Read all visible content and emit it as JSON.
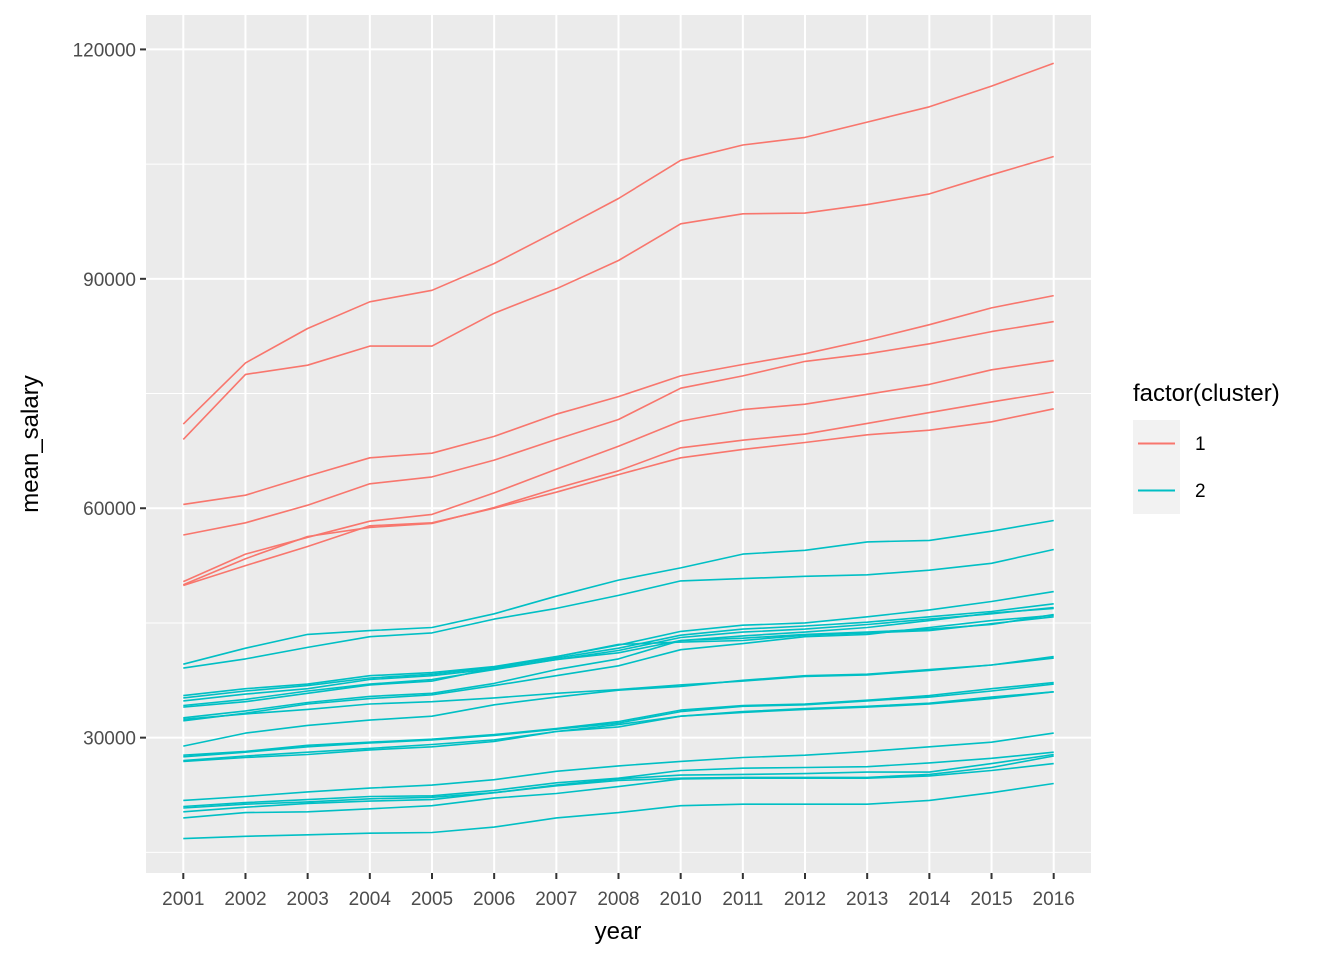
{
  "chart_data": {
    "type": "line",
    "xlabel": "year",
    "ylabel": "mean_salary",
    "categories": [
      "2001",
      "2002",
      "2003",
      "2004",
      "2005",
      "2006",
      "2007",
      "2008",
      "2010",
      "2011",
      "2012",
      "2013",
      "2014",
      "2015",
      "2016"
    ],
    "y_ticks": [
      30000,
      60000,
      90000,
      120000
    ],
    "y_tick_labels": [
      "30000",
      "60000",
      "90000",
      "120000"
    ],
    "ylim": [
      12300,
      124500
    ],
    "grid": true,
    "legend": {
      "title": "factor(cluster)",
      "placement": "right",
      "entries": [
        {
          "label": "1",
          "color": "#F8766D"
        },
        {
          "label": "2",
          "color": "#00BFC4"
        }
      ]
    },
    "series": [
      {
        "group": "1",
        "values": [
          71000,
          79000,
          83500,
          87000,
          88500,
          92000,
          96200,
          100500,
          105500,
          107500,
          108500,
          110500,
          112500,
          115200,
          118200
        ]
      },
      {
        "group": "1",
        "values": [
          69000,
          77500,
          78700,
          81200,
          81200,
          85500,
          88700,
          92400,
          97200,
          98500,
          98600,
          99700,
          101100,
          103600,
          106000
        ]
      },
      {
        "group": "1",
        "values": [
          60500,
          61700,
          64200,
          66600,
          67200,
          69400,
          72300,
          74600,
          77300,
          78800,
          80200,
          82000,
          84000,
          86200,
          87800
        ]
      },
      {
        "group": "1",
        "values": [
          56500,
          58100,
          60400,
          63200,
          64100,
          66300,
          69000,
          71600,
          75700,
          77300,
          79200,
          80200,
          81500,
          83100,
          84400
        ]
      },
      {
        "group": "1",
        "values": [
          50400,
          54000,
          56200,
          58300,
          59200,
          62000,
          65100,
          68100,
          71400,
          72900,
          73600,
          74900,
          76200,
          78100,
          79300
        ]
      },
      {
        "group": "1",
        "values": [
          50000,
          53400,
          56300,
          57500,
          58000,
          60100,
          62600,
          64900,
          67900,
          68900,
          69700,
          71100,
          72500,
          73900,
          75200
        ]
      },
      {
        "group": "1",
        "values": [
          49900,
          52500,
          55000,
          57700,
          58100,
          60000,
          62100,
          64400,
          66600,
          67700,
          68600,
          69600,
          70200,
          71300,
          73000
        ]
      },
      {
        "group": "2",
        "values": [
          39600,
          41700,
          43500,
          44000,
          44400,
          46200,
          48500,
          50600,
          52200,
          54000,
          54500,
          55600,
          55800,
          57000,
          58400
        ]
      },
      {
        "group": "2",
        "values": [
          39100,
          40300,
          41800,
          43200,
          43700,
          45500,
          46900,
          48600,
          50500,
          50800,
          51100,
          51300,
          51900,
          52800,
          54600
        ]
      },
      {
        "group": "2",
        "values": [
          35500,
          36400,
          37000,
          38100,
          38500,
          39300,
          40600,
          42100,
          43900,
          44700,
          45000,
          45800,
          46700,
          47800,
          49100
        ]
      },
      {
        "group": "2",
        "values": [
          35200,
          36100,
          36800,
          37800,
          38300,
          39200,
          40400,
          41700,
          43400,
          44200,
          44600,
          45100,
          45800,
          46500,
          47500
        ]
      },
      {
        "group": "2",
        "values": [
          34800,
          35700,
          36400,
          37600,
          38100,
          39000,
          40200,
          41400,
          43100,
          43800,
          44200,
          44800,
          45500,
          46200,
          47000
        ]
      },
      {
        "group": "2",
        "values": [
          34200,
          35000,
          36100,
          37000,
          37600,
          38900,
          40200,
          41100,
          42700,
          43300,
          43800,
          44400,
          45300,
          46300,
          46900
        ]
      },
      {
        "group": "2",
        "values": [
          34000,
          34700,
          35800,
          36900,
          37400,
          39100,
          40600,
          42200,
          42500,
          42700,
          43400,
          43700,
          44000,
          44900,
          45800
        ]
      },
      {
        "group": "2",
        "values": [
          32600,
          33500,
          34600,
          35400,
          35800,
          37100,
          38900,
          40300,
          42700,
          43000,
          43500,
          43800,
          44200,
          44800,
          46100
        ]
      },
      {
        "group": "2",
        "values": [
          32200,
          33200,
          34400,
          35100,
          35600,
          36800,
          38100,
          39400,
          41500,
          42300,
          43200,
          43500,
          44400,
          45300,
          46000
        ]
      },
      {
        "group": "2",
        "values": [
          32400,
          33100,
          33700,
          34400,
          34700,
          35200,
          35800,
          36300,
          36900,
          37400,
          38000,
          38200,
          38800,
          39500,
          40600
        ]
      },
      {
        "group": "2",
        "values": [
          28900,
          30600,
          31600,
          32300,
          32800,
          34300,
          35300,
          36200,
          36700,
          37500,
          38100,
          38300,
          38900,
          39500,
          40400
        ]
      },
      {
        "group": "2",
        "values": [
          27700,
          28200,
          29000,
          29400,
          29800,
          30400,
          31200,
          32100,
          33600,
          34200,
          34400,
          34900,
          35500,
          36400,
          37200
        ]
      },
      {
        "group": "2",
        "values": [
          27500,
          28100,
          28800,
          29300,
          29700,
          30300,
          31100,
          31900,
          33400,
          34100,
          34300,
          34800,
          35300,
          36100,
          37000
        ]
      },
      {
        "group": "2",
        "values": [
          27000,
          27600,
          28100,
          28600,
          29100,
          29700,
          30800,
          31700,
          32800,
          33400,
          33800,
          34100,
          34500,
          35300,
          36000
        ]
      },
      {
        "group": "2",
        "values": [
          26900,
          27400,
          27800,
          28400,
          28800,
          29500,
          30800,
          31400,
          32800,
          33300,
          33700,
          34000,
          34400,
          35100,
          36000
        ]
      },
      {
        "group": "2",
        "values": [
          21800,
          22300,
          22900,
          23400,
          23800,
          24500,
          25600,
          26300,
          26900,
          27400,
          27700,
          28200,
          28800,
          29400,
          30600
        ]
      },
      {
        "group": "2",
        "values": [
          21000,
          21500,
          21900,
          22300,
          22400,
          23100,
          24100,
          24700,
          25700,
          26000,
          26100,
          26200,
          26700,
          27300,
          28100
        ]
      },
      {
        "group": "2",
        "values": [
          20800,
          21300,
          21600,
          22000,
          22200,
          22800,
          23800,
          24600,
          25100,
          25200,
          25300,
          25500,
          25500,
          26600,
          27800
        ]
      },
      {
        "group": "2",
        "values": [
          20300,
          20900,
          21400,
          21700,
          21900,
          22800,
          23700,
          24400,
          24700,
          24800,
          24800,
          24800,
          25200,
          26100,
          27600
        ]
      },
      {
        "group": "2",
        "values": [
          19500,
          20200,
          20300,
          20700,
          21100,
          22100,
          22700,
          23600,
          24600,
          24700,
          24700,
          24700,
          25000,
          25700,
          26600
        ]
      },
      {
        "group": "2",
        "values": [
          16800,
          17100,
          17300,
          17500,
          17600,
          18300,
          19500,
          20200,
          21100,
          21300,
          21300,
          21300,
          21800,
          22800,
          24000
        ]
      }
    ]
  }
}
